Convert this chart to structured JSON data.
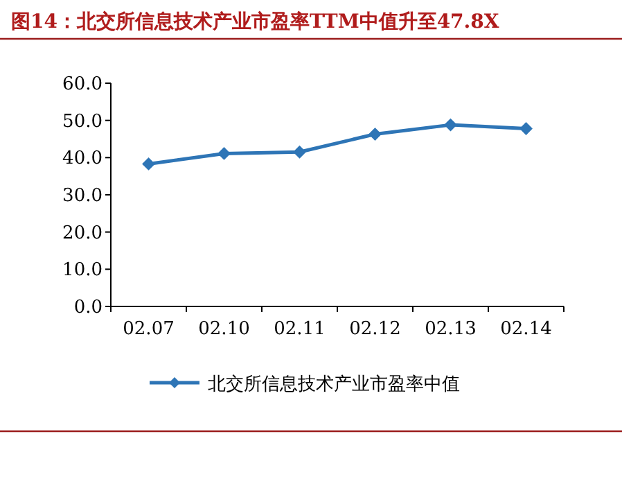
{
  "chart_data": {
    "type": "line",
    "title": "图14：北交所信息技术产业市盈率TTM中值升至47.8X",
    "categories": [
      "02.07",
      "02.10",
      "02.11",
      "02.12",
      "02.13",
      "02.14"
    ],
    "series": [
      {
        "name": "北交所信息技术产业市盈率中值",
        "color": "#2e75b6",
        "values": [
          38.3,
          41.1,
          41.5,
          46.3,
          48.8,
          47.8
        ]
      }
    ],
    "ylim": [
      0,
      60
    ],
    "yticks": [
      {
        "value": 0,
        "label": "0.0"
      },
      {
        "value": 10,
        "label": "10.0"
      },
      {
        "value": 20,
        "label": "20.0"
      },
      {
        "value": 30,
        "label": "30.0"
      },
      {
        "value": 40,
        "label": "40.0"
      },
      {
        "value": 50,
        "label": "50.0"
      },
      {
        "value": 60,
        "label": "60.0"
      }
    ],
    "legend": "bottom",
    "marker": "diamond",
    "line_style": "solid"
  }
}
